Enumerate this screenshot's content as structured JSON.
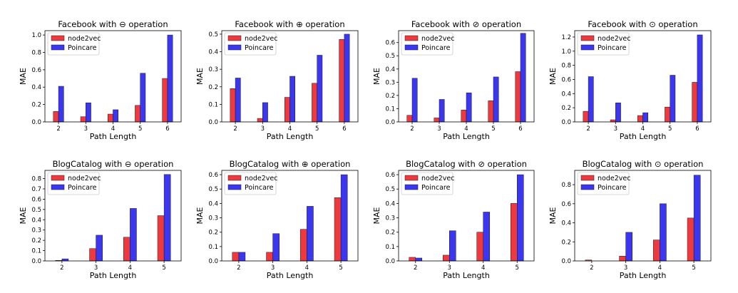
{
  "chart_data": [
    {
      "type": "bar",
      "title": "Facebook with ⊖ operation",
      "xlabel": "Path Length",
      "ylabel": "MAE",
      "categories": [
        "2",
        "3",
        "4",
        "5",
        "6"
      ],
      "series": [
        {
          "name": "node2vec",
          "values": [
            0.12,
            0.06,
            0.09,
            0.19,
            0.5
          ]
        },
        {
          "name": "Poincare",
          "values": [
            0.41,
            0.22,
            0.14,
            0.56,
            1.0
          ]
        }
      ],
      "ylim": [
        0,
        1.05
      ],
      "yticks": [
        0.0,
        0.2,
        0.4,
        0.6,
        0.8,
        1.0
      ],
      "ytick_labels": [
        "0.0",
        "0.2",
        "0.4",
        "0.6",
        "0.8",
        "1.0"
      ],
      "legend": "top-left",
      "grid": false
    },
    {
      "type": "bar",
      "title": "Facebook with ⊕ operation",
      "xlabel": "Path Length",
      "ylabel": "MAE",
      "categories": [
        "2",
        "3",
        "4",
        "5",
        "6"
      ],
      "series": [
        {
          "name": "node2vec",
          "values": [
            0.19,
            0.02,
            0.14,
            0.22,
            0.47
          ]
        },
        {
          "name": "Poincare",
          "values": [
            0.25,
            0.11,
            0.26,
            0.38,
            0.5
          ]
        }
      ],
      "ylim": [
        0,
        0.52
      ],
      "yticks": [
        0.0,
        0.1,
        0.2,
        0.3,
        0.4,
        0.5
      ],
      "ytick_labels": [
        "0.0",
        "0.1",
        "0.2",
        "0.3",
        "0.4",
        "0.5"
      ],
      "legend": "top-left",
      "grid": false
    },
    {
      "type": "bar",
      "title": "Facebook with ⊘ operation",
      "xlabel": "Path Length",
      "ylabel": "MAE",
      "categories": [
        "2",
        "3",
        "4",
        "5",
        "6"
      ],
      "series": [
        {
          "name": "node2vec",
          "values": [
            0.05,
            0.03,
            0.09,
            0.16,
            0.38
          ]
        },
        {
          "name": "Poincare",
          "values": [
            0.33,
            0.17,
            0.22,
            0.34,
            0.67
          ]
        }
      ],
      "ylim": [
        0,
        0.69
      ],
      "yticks": [
        0.0,
        0.1,
        0.2,
        0.3,
        0.4,
        0.5,
        0.6
      ],
      "ytick_labels": [
        "0.0",
        "0.1",
        "0.2",
        "0.3",
        "0.4",
        "0.5",
        "0.6"
      ],
      "legend": "top-left",
      "grid": false
    },
    {
      "type": "bar",
      "title": "Facebook with ⊙ operation",
      "xlabel": "Path Length",
      "ylabel": "MAE",
      "categories": [
        "2",
        "3",
        "4",
        "5",
        "6"
      ],
      "series": [
        {
          "name": "node2vec",
          "values": [
            0.15,
            0.03,
            0.09,
            0.21,
            0.56
          ]
        },
        {
          "name": "Poincare",
          "values": [
            0.64,
            0.27,
            0.13,
            0.66,
            1.23
          ]
        }
      ],
      "ylim": [
        0,
        1.29
      ],
      "yticks": [
        0.0,
        0.2,
        0.4,
        0.6,
        0.8,
        1.0,
        1.2
      ],
      "ytick_labels": [
        "0.0",
        "0.2",
        "0.4",
        "0.6",
        "0.8",
        "1.0",
        "1.2"
      ],
      "legend": "top-left",
      "grid": false
    },
    {
      "type": "bar",
      "title": "BlogCatalog with ⊖ operation",
      "xlabel": "Path Length",
      "ylabel": "MAE",
      "categories": [
        "2",
        "3",
        "4",
        "5"
      ],
      "series": [
        {
          "name": "node2vec",
          "values": [
            0.005,
            0.12,
            0.23,
            0.44
          ]
        },
        {
          "name": "Poincare",
          "values": [
            0.02,
            0.25,
            0.51,
            0.84
          ]
        }
      ],
      "ylim": [
        0,
        0.88
      ],
      "yticks": [
        0.0,
        0.1,
        0.2,
        0.3,
        0.4,
        0.5,
        0.6,
        0.7,
        0.8
      ],
      "ytick_labels": [
        "0.0",
        "0.1",
        "0.2",
        "0.3",
        "0.4",
        "0.5",
        "0.6",
        "0.7",
        "0.8"
      ],
      "legend": "top-left",
      "grid": false
    },
    {
      "type": "bar",
      "title": "BlogCatalog with ⊕ operation",
      "xlabel": "Path Length",
      "ylabel": "MAE",
      "categories": [
        "2",
        "3",
        "4",
        "5"
      ],
      "series": [
        {
          "name": "node2vec",
          "values": [
            0.06,
            0.06,
            0.22,
            0.44
          ]
        },
        {
          "name": "Poincare",
          "values": [
            0.06,
            0.19,
            0.38,
            0.6
          ]
        }
      ],
      "ylim": [
        0,
        0.63
      ],
      "yticks": [
        0.0,
        0.1,
        0.2,
        0.3,
        0.4,
        0.5,
        0.6
      ],
      "ytick_labels": [
        "0.0",
        "0.1",
        "0.2",
        "0.3",
        "0.4",
        "0.5",
        "0.6"
      ],
      "legend": "top-left",
      "grid": false
    },
    {
      "type": "bar",
      "title": "BlogCatalog with ⊘ operation",
      "xlabel": "Path Length",
      "ylabel": "MAE",
      "categories": [
        "2",
        "3",
        "4",
        "5"
      ],
      "series": [
        {
          "name": "node2vec",
          "values": [
            0.025,
            0.04,
            0.2,
            0.4
          ]
        },
        {
          "name": "Poincare",
          "values": [
            0.02,
            0.21,
            0.34,
            0.6
          ]
        }
      ],
      "ylim": [
        0,
        0.63
      ],
      "yticks": [
        0.0,
        0.1,
        0.2,
        0.3,
        0.4,
        0.5,
        0.6
      ],
      "ytick_labels": [
        "0.0",
        "0.1",
        "0.2",
        "0.3",
        "0.4",
        "0.5",
        "0.6"
      ],
      "legend": "top-left",
      "grid": false
    },
    {
      "type": "bar",
      "title": "BlogCatalog with ⊙ operation",
      "xlabel": "Path Length",
      "ylabel": "MAE",
      "categories": [
        "2",
        "3",
        "4",
        "5"
      ],
      "series": [
        {
          "name": "node2vec",
          "values": [
            0.01,
            0.05,
            0.22,
            0.45
          ]
        },
        {
          "name": "Poincare",
          "values": [
            0.0,
            0.3,
            0.6,
            0.9
          ]
        }
      ],
      "ylim": [
        0,
        0.95
      ],
      "yticks": [
        0.0,
        0.2,
        0.4,
        0.6,
        0.8
      ],
      "ytick_labels": [
        "0.0",
        "0.2",
        "0.4",
        "0.6",
        "0.8"
      ],
      "legend": "top-left",
      "grid": false
    }
  ],
  "colors": {
    "node2vec": "#ee3a3f",
    "Poincare": "#3b36f0",
    "edge": "#1a1a1a"
  }
}
